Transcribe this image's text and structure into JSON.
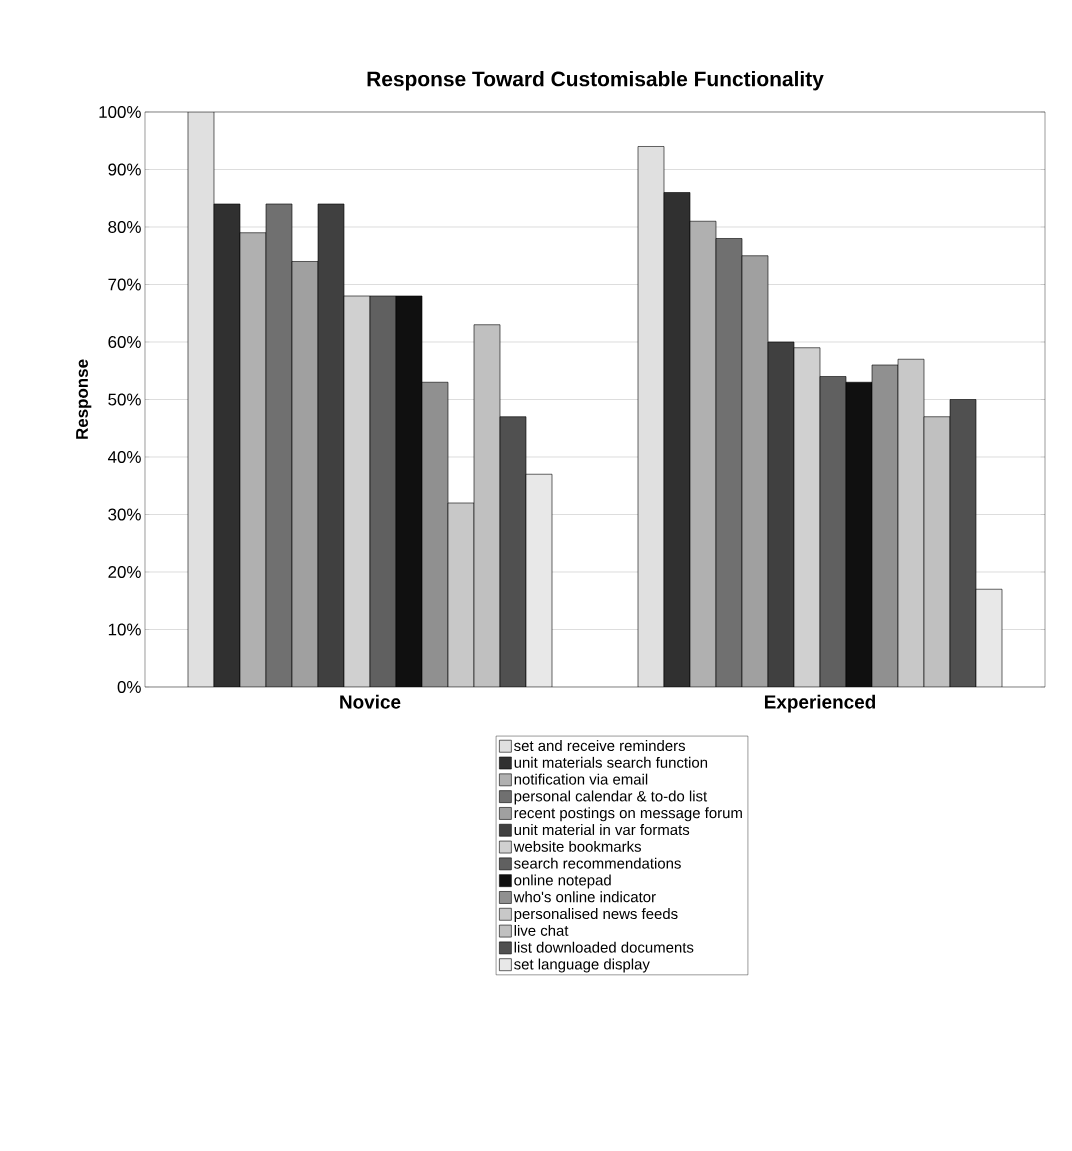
{
  "chart_data": {
    "type": "bar",
    "title": "Response Toward Customisable Functionality",
    "ylabel": "Response",
    "categories": [
      "Novice",
      "Experienced"
    ],
    "series": [
      {
        "name": "set and receive reminders",
        "color": "#e0e0e0",
        "values": [
          100,
          94
        ]
      },
      {
        "name": "unit materials search function",
        "color": "#303030",
        "values": [
          84,
          86
        ]
      },
      {
        "name": "notification via email",
        "color": "#b0b0b0",
        "values": [
          79,
          81
        ]
      },
      {
        "name": "personal calendar & to-do list",
        "color": "#707070",
        "values": [
          84,
          78
        ]
      },
      {
        "name": "recent postings on message forum",
        "color": "#a0a0a0",
        "values": [
          74,
          75
        ]
      },
      {
        "name": "unit material in var formats",
        "color": "#404040",
        "values": [
          84,
          60
        ]
      },
      {
        "name": "website bookmarks",
        "color": "#d0d0d0",
        "values": [
          68,
          59
        ]
      },
      {
        "name": "search recommendations",
        "color": "#606060",
        "values": [
          68,
          54
        ]
      },
      {
        "name": "online notepad",
        "color": "#101010",
        "values": [
          68,
          53
        ]
      },
      {
        "name": "who's online indicator",
        "color": "#909090",
        "values": [
          53,
          56
        ]
      },
      {
        "name": "personalised news feeds",
        "color": "#c8c8c8",
        "values": [
          32,
          57
        ]
      },
      {
        "name": "live chat",
        "color": "#c0c0c0",
        "values": [
          63,
          47
        ]
      },
      {
        "name": "list downloaded documents",
        "color": "#505050",
        "values": [
          47,
          50
        ]
      },
      {
        "name": "set language display",
        "color": "#e8e8e8",
        "values": [
          37,
          17
        ]
      }
    ],
    "ylim": [
      0,
      100
    ],
    "yticks": [
      {
        "value": 0,
        "label": "0%"
      },
      {
        "value": 10,
        "label": "10%"
      },
      {
        "value": 20,
        "label": "20%"
      },
      {
        "value": 30,
        "label": "30%"
      },
      {
        "value": 40,
        "label": "40%"
      },
      {
        "value": 50,
        "label": "50%"
      },
      {
        "value": 60,
        "label": "60%"
      },
      {
        "value": 70,
        "label": "70%"
      },
      {
        "value": 80,
        "label": "80%"
      },
      {
        "value": 90,
        "label": "90%"
      },
      {
        "value": 100,
        "label": "100%"
      }
    ],
    "grid": "y",
    "legend": "bottom"
  }
}
